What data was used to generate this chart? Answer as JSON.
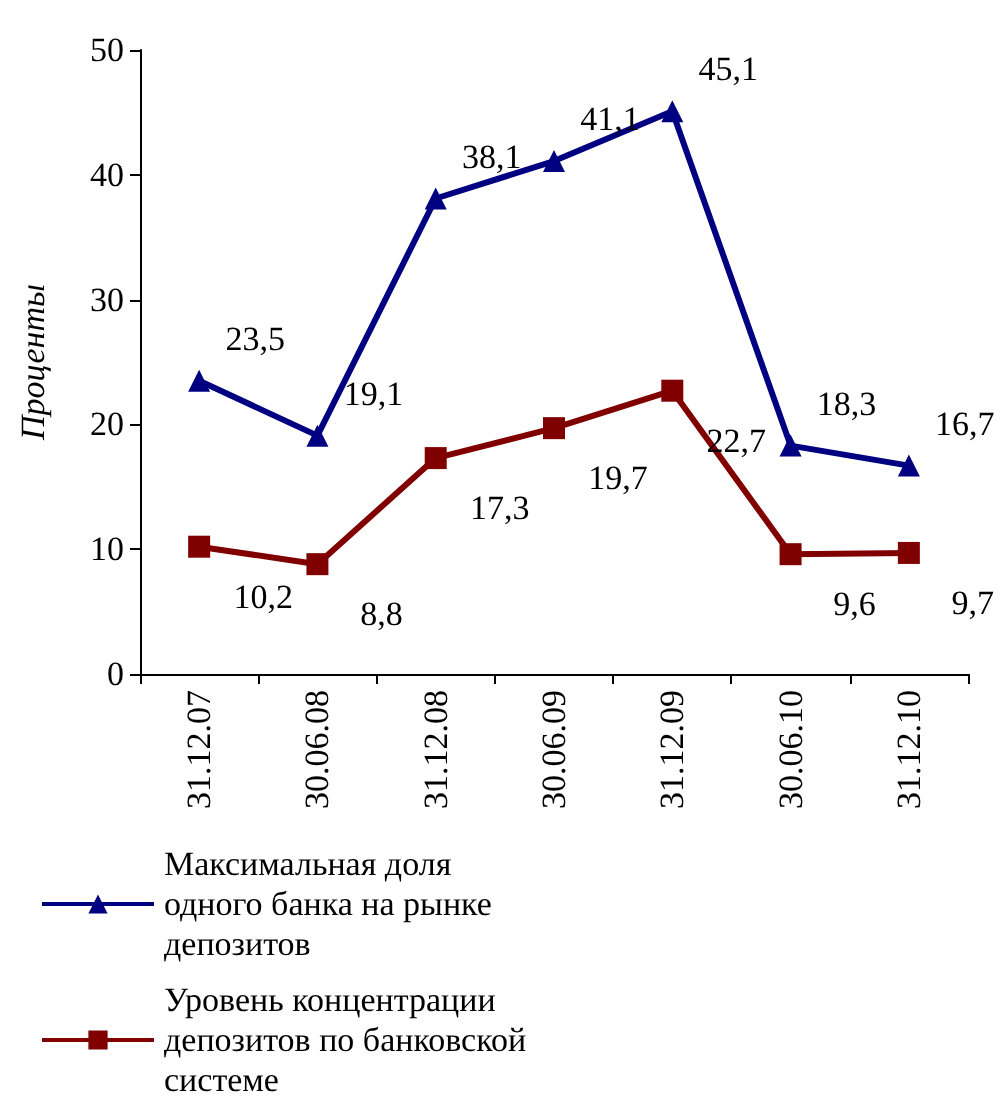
{
  "chart_data": {
    "type": "line",
    "ylabel": "Проценты",
    "categories": [
      "31.12.07",
      "30.06.08",
      "31.12.08",
      "30.06.09",
      "31.12.09",
      "30.06.10",
      "31.12.10"
    ],
    "series": [
      {
        "name": "Максимальная доля одного банка на рынке депозитов",
        "color": "#000080",
        "marker": "triangle",
        "values": [
          23.5,
          19.1,
          38.1,
          41.1,
          45.1,
          18.3,
          16.7
        ],
        "value_labels": [
          "23,5",
          "19,1",
          "38,1",
          "41,1",
          "45,1",
          "18,3",
          "16,7"
        ]
      },
      {
        "name": "Уровень концентрации депозитов по банковской системе",
        "color": "#800000",
        "marker": "square",
        "values": [
          10.2,
          8.8,
          17.3,
          19.7,
          22.7,
          9.6,
          9.7
        ],
        "value_labels": [
          "10,2",
          "8,8",
          "17,3",
          "19,7",
          "22,7",
          "9,6",
          "9,7"
        ]
      }
    ],
    "ylim": [
      0,
      50
    ],
    "yticks": [
      0,
      10,
      20,
      30,
      40,
      50
    ],
    "grid": false,
    "legend": "bottom",
    "line_style": "solid"
  }
}
